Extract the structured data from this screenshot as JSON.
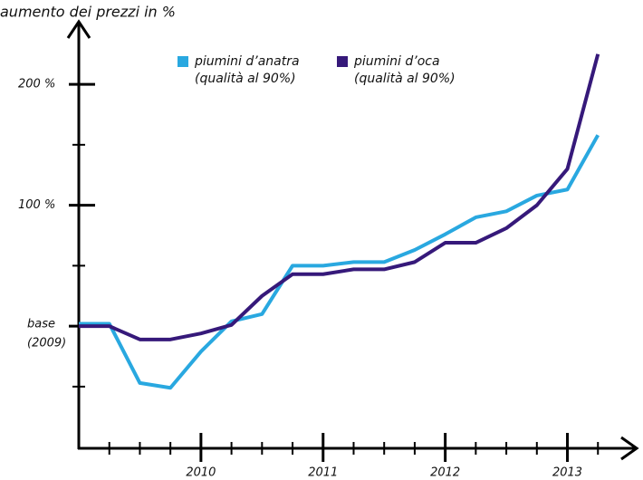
{
  "chart_data": {
    "type": "line",
    "y_label": "aumento dei prezzi in %",
    "categories": [
      null,
      null,
      null,
      null,
      "2010",
      null,
      null,
      null,
      "2011",
      null,
      null,
      null,
      "2012",
      null,
      null,
      null,
      "2013",
      null
    ],
    "series": [
      {
        "name": "piumini d’anatra",
        "note": "(qualità al 90%)",
        "color": "#29a8e0",
        "values": [
          2,
          2,
          -47,
          -51,
          -21,
          4,
          10,
          50,
          50,
          53,
          53,
          63,
          76,
          90,
          95,
          108,
          113,
          158
        ]
      },
      {
        "name": "piumini d’oca",
        "note": "(qualità al 90%)",
        "color": "#36197a",
        "values": [
          0,
          0,
          -11,
          -11,
          -6,
          1,
          25,
          43,
          43,
          47,
          47,
          53,
          69,
          69,
          81,
          100,
          130,
          225
        ]
      }
    ],
    "ylim": [
      -101,
      248
    ],
    "yticks": [
      {
        "value": 0,
        "label": "base",
        "sublabel": "(2009)"
      },
      {
        "value": 100,
        "label": "100 %"
      },
      {
        "value": 200,
        "label": "200 %"
      }
    ],
    "yminor": [
      -50,
      50,
      150
    ]
  }
}
